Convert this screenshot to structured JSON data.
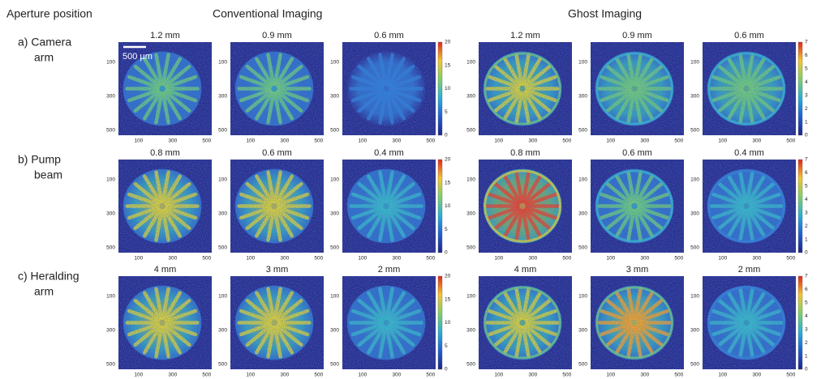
{
  "header": {
    "aperture": "Aperture position",
    "conventional": "Conventional Imaging",
    "ghost": "Ghost Imaging"
  },
  "scale_bar": "500 µm",
  "rows": [
    {
      "label": [
        "a) Camera",
        "arm"
      ],
      "panels": [
        "1.2 mm",
        "0.9 mm",
        "0.6 mm",
        "1.2 mm",
        "0.9 mm",
        "0.6 mm"
      ]
    },
    {
      "label": [
        "b) Pump",
        "beam"
      ],
      "panels": [
        "0.8 mm",
        "0.6 mm",
        "0.4 mm",
        "0.8 mm",
        "0.6 mm",
        "0.4 mm"
      ]
    },
    {
      "label": [
        "c) Heralding",
        "arm"
      ],
      "panels": [
        "4 mm",
        "3 mm",
        "2 mm",
        "4 mm",
        "3 mm",
        "2 mm"
      ]
    }
  ],
  "axis_ticks": [
    100,
    300,
    500
  ],
  "colorbars": {
    "conventional": [
      0,
      5,
      10,
      15,
      20
    ],
    "ghost": [
      0,
      1,
      2,
      3,
      4,
      5,
      6,
      7
    ]
  }
}
